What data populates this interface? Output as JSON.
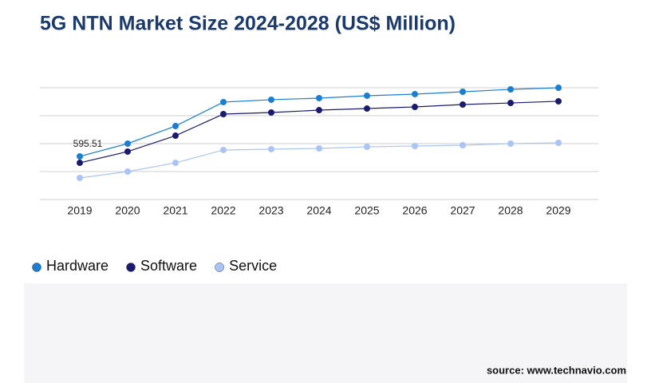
{
  "chart_data": {
    "type": "line",
    "title": "5G NTN Market Size 2024-2028 (US$ Million)",
    "x": [
      "2019",
      "2020",
      "2021",
      "2022",
      "2023",
      "2024",
      "2025",
      "2026",
      "2027",
      "2028",
      "2029"
    ],
    "series": [
      {
        "name": "Hardware",
        "color": "#1a7fd0",
        "values": [
          595.51,
          772,
          1015,
          1346,
          1379,
          1401,
          1434,
          1456,
          1489,
          1522,
          1544
        ],
        "value_labels": [
          "595.51",
          null,
          null,
          null,
          null,
          null,
          null,
          null,
          null,
          null,
          null
        ]
      },
      {
        "name": "Software",
        "color": "#1a1a6e",
        "values": [
          507,
          662,
          882,
          1180,
          1202,
          1235,
          1257,
          1279,
          1312,
          1334,
          1357
        ]
      },
      {
        "name": "Service",
        "color": "#a9c4f5",
        "values": [
          298,
          386,
          507,
          684,
          695,
          706,
          728,
          739,
          750,
          772,
          783
        ]
      }
    ],
    "ylim": [
      0,
      1544
    ],
    "yticks": [
      0,
      386,
      772,
      1158,
      1544
    ],
    "ytick_labels": false,
    "grid": true,
    "legend": "bottom-left",
    "source": "source: www.technavio.com"
  }
}
